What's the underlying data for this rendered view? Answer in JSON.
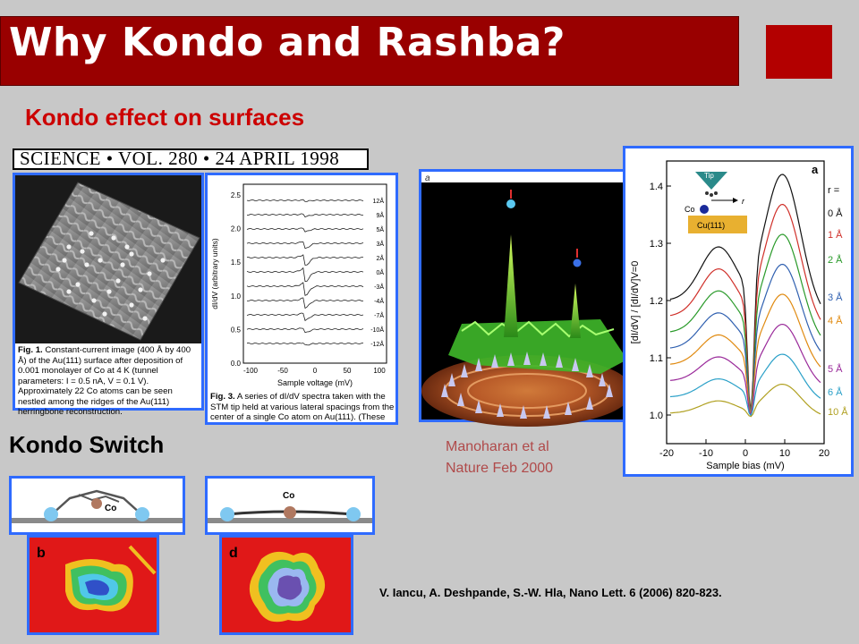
{
  "title": "Why Kondo and Rashba?",
  "subtitle": "Kondo effect on surfaces",
  "journal_header": "SCIENCE • VOL. 280 • 24 APRIL 1998",
  "fig1": {
    "caption_bold": "Fig. 1.",
    "caption": "Constant-current image (400 Å by 400 Å) of the Au(111) surface after deposition of 0.001 monolayer of Co at 4 K (tunnel parameters: I = 0.5 nA, V = 0.1 V). Approximately 22 Co atoms can be seen nestled among the ridges of the Au(111) herringbone reconstruction."
  },
  "fig3": {
    "ylabel": "dI/dV (arbitrary units)",
    "xlabel": "Sample voltage (mV)",
    "yticks": [
      "2.5",
      "2.0",
      "1.5",
      "1.0",
      "0.5",
      "0.0"
    ],
    "xticks": [
      "-100",
      "-50",
      "0",
      "50",
      "100"
    ],
    "trace_labels": [
      "12Å",
      "9Å",
      "5Å",
      "3Å",
      "2Å",
      "0Å",
      "-3Å",
      "-4Å",
      "-7Å",
      "-10Å",
      "-12Å"
    ],
    "caption_bold": "Fig. 3.",
    "caption": "A series of dI/dV spectra taken with the STM tip held at various lateral spacings from the center of a single Co atom on Au(111). (These"
  },
  "mirage": {
    "panel_label": "a",
    "attribution_line1": "Manoharan et al",
    "attribution_line2": "Nature Feb 2000"
  },
  "cu_plot": {
    "panel_label": "a",
    "ylabel": "[dI/dV] / [dI/dV]V=0",
    "xlabel": "Sample bias (mV)",
    "yticks": [
      "1.4",
      "1.3",
      "1.2",
      "1.1",
      "1.0"
    ],
    "xticks": [
      "-20",
      "-10",
      "0",
      "10",
      "20"
    ],
    "r_label": "r =",
    "inset_tip": "Tip",
    "inset_co": "Co",
    "inset_r": "r",
    "inset_surface": "Cu(111)",
    "series": [
      {
        "label": "0 Å",
        "color": "#111111"
      },
      {
        "label": "1 Å",
        "color": "#d0302a"
      },
      {
        "label": "2 Å",
        "color": "#2a9a2a"
      },
      {
        "label": "3 Å",
        "color": "#3060b0"
      },
      {
        "label": "4 Å",
        "color": "#e08a10"
      },
      {
        "label": "5 Å",
        "color": "#9a2a9a"
      },
      {
        "label": "6 Å",
        "color": "#2aa0c8"
      },
      {
        "label": "10 Å",
        "color": "#b0a020"
      }
    ]
  },
  "kondo_switch": {
    "heading": "Kondo Switch",
    "left_label": "Co",
    "right_label": "Co",
    "map_b_label": "b",
    "map_d_label": "d"
  },
  "reference": "V. Iancu, A. Deshpande, S.-W. Hla, Nano Lett. 6 (2006) 820-823."
}
